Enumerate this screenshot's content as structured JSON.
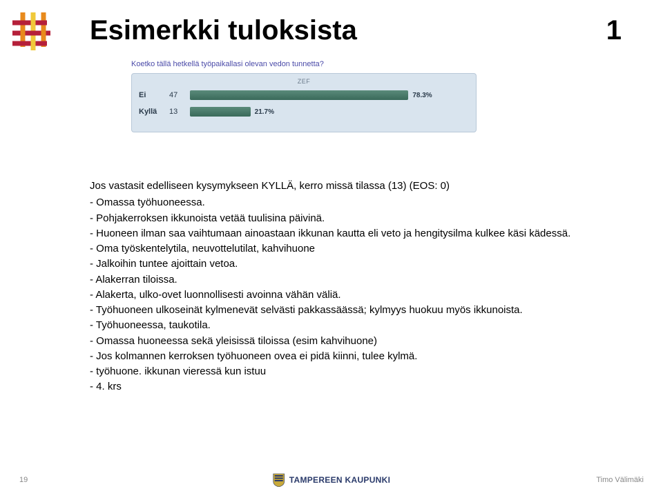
{
  "title": "Esimerkki tuloksista",
  "title_num": "1",
  "question_text": "Koetko tällä hetkellä työpaikallasi olevan vedon tunnetta?",
  "chart": {
    "type": "bar",
    "zef_label": "ZEF",
    "background_color": "#d9e4ee",
    "border_color": "#b8c8d8",
    "bar_gradient_top": "#5a8a7a",
    "bar_gradient_bottom": "#3a6a5a",
    "label_color": "#2a3a4a",
    "label_fontsize": 11,
    "pct_fontsize": 10,
    "max_pct": 100,
    "rows": [
      {
        "label": "Ei",
        "count": 47,
        "pct": 78.3,
        "pct_label": "78.3%"
      },
      {
        "label": "Kyllä",
        "count": 13,
        "pct": 21.7,
        "pct_label": "21.7%"
      }
    ]
  },
  "body_lines": [
    "Jos vastasit edelliseen kysymykseen KYLLÄ, kerro missä tilassa (13) (EOS: 0)",
    "- Omassa työhuoneessa.",
    "- Pohjakerroksen ikkunoista vetää tuulisina päivinä.",
    "- Huoneen ilman saa vaihtumaan ainoastaan ikkunan kautta eli veto ja hengitysilma kulkee käsi kädessä.",
    "- Oma työskentelytila, neuvottelutilat, kahvihuone",
    "- Jalkoihin tuntee ajoittain vetoa.",
    "- Alakerran tiloissa.",
    "- Alakerta, ulko-ovet luonnollisesti avoinna vähän väliä.",
    "- Työhuoneen ulkoseinät kylmenevät selvästi pakkassäässä; kylmyys huokuu myös ikkunoista.",
    "- Työhuoneessa, taukotila.",
    "- Omassa huoneessa sekä yleisissä tiloissa (esim kahvihuone)",
    "- Jos kolmannen kerroksen työhuoneen ovea ei pidä kiinni, tulee kylmä.",
    "- työhuone. ikkunan vieressä kun istuu",
    "- 4. krs"
  ],
  "footer": {
    "slide_number": "19",
    "brand": "TAMPEREEN KAUPUNKI",
    "author": "Timo Välimäki"
  },
  "logo_colors": {
    "red": "#b5203a",
    "orange": "#e88a1c",
    "yellow": "#f0c93a"
  }
}
